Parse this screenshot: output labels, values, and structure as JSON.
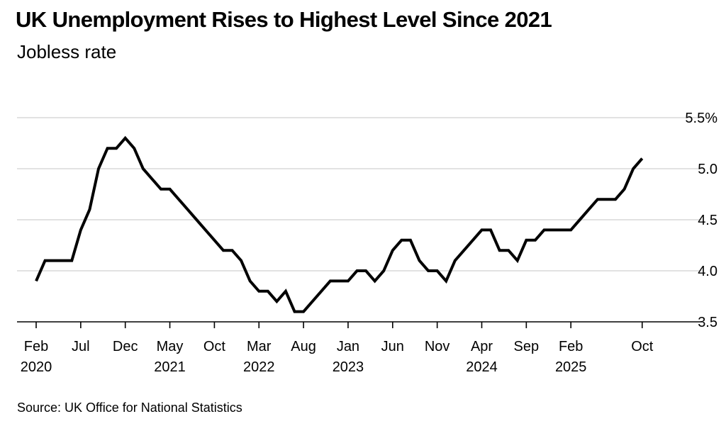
{
  "title": "UK Unemployment Rises to Highest Level Since 2021",
  "subtitle": "Jobless rate",
  "source": "Source: UK Office for National Statistics",
  "colors": {
    "line": "#000000",
    "grid": "#d9d9d9",
    "axis": "#000000"
  },
  "chart_data": {
    "type": "line",
    "title": "UK Unemployment Rises to Highest Level Since 2021",
    "subtitle": "Jobless rate",
    "xlabel": "",
    "ylabel": "",
    "ylim": [
      3.35,
      5.5
    ],
    "grid": true,
    "y_axis_position": "right",
    "y_ticks": [
      {
        "value": 5.5,
        "label": "5.5%"
      },
      {
        "value": 5.0,
        "label": "5.0"
      },
      {
        "value": 4.5,
        "label": "4.5"
      },
      {
        "value": 4.0,
        "label": "4.0"
      },
      {
        "value": 3.5,
        "label": "3.5"
      }
    ],
    "x_ticks": [
      {
        "i": 0,
        "label": "Feb",
        "year": "2020"
      },
      {
        "i": 5,
        "label": "Jul",
        "year": ""
      },
      {
        "i": 10,
        "label": "Dec",
        "year": ""
      },
      {
        "i": 15,
        "label": "May",
        "year": "2021"
      },
      {
        "i": 20,
        "label": "Oct",
        "year": ""
      },
      {
        "i": 25,
        "label": "Mar",
        "year": "2022"
      },
      {
        "i": 30,
        "label": "Aug",
        "year": ""
      },
      {
        "i": 35,
        "label": "Jan",
        "year": "2023"
      },
      {
        "i": 40,
        "label": "Jun",
        "year": ""
      },
      {
        "i": 45,
        "label": "Nov",
        "year": ""
      },
      {
        "i": 50,
        "label": "Apr",
        "year": "2024"
      },
      {
        "i": 55,
        "label": "Sep",
        "year": ""
      },
      {
        "i": 60,
        "label": "Feb",
        "year": "2025"
      },
      {
        "i": 68,
        "label": "Oct",
        "year": ""
      }
    ],
    "x": [
      "2020-02",
      "2020-03",
      "2020-04",
      "2020-05",
      "2020-06",
      "2020-07",
      "2020-08",
      "2020-09",
      "2020-10",
      "2020-11",
      "2020-12",
      "2021-01",
      "2021-02",
      "2021-03",
      "2021-04",
      "2021-05",
      "2021-06",
      "2021-07",
      "2021-08",
      "2021-09",
      "2021-10",
      "2021-11",
      "2021-12",
      "2022-01",
      "2022-02",
      "2022-03",
      "2022-04",
      "2022-05",
      "2022-06",
      "2022-07",
      "2022-08",
      "2022-09",
      "2022-10",
      "2022-11",
      "2022-12",
      "2023-01",
      "2023-02",
      "2023-03",
      "2023-04",
      "2023-05",
      "2023-06",
      "2023-07",
      "2023-08",
      "2023-09",
      "2023-10",
      "2023-11",
      "2023-12",
      "2024-01",
      "2024-02",
      "2024-03",
      "2024-04",
      "2024-05",
      "2024-06",
      "2024-07",
      "2024-08",
      "2024-09",
      "2024-10",
      "2024-11",
      "2024-12",
      "2025-01",
      "2025-02",
      "2025-03",
      "2025-04",
      "2025-05",
      "2025-06",
      "2025-07",
      "2025-08",
      "2025-09",
      "2025-10"
    ],
    "series": [
      {
        "values": [
          3.9,
          4.1,
          4.1,
          4.1,
          4.1,
          4.4,
          4.6,
          5.0,
          5.2,
          5.2,
          5.3,
          5.2,
          5.0,
          4.9,
          4.8,
          4.8,
          4.7,
          4.6,
          4.5,
          4.4,
          4.3,
          4.2,
          4.2,
          4.1,
          3.9,
          3.8,
          3.8,
          3.7,
          3.8,
          3.6,
          3.6,
          3.7,
          3.8,
          3.9,
          3.9,
          3.9,
          4.0,
          4.0,
          3.9,
          4.0,
          4.2,
          4.3,
          4.3,
          4.1,
          4.0,
          4.0,
          3.9,
          4.1,
          4.2,
          4.3,
          4.4,
          4.4,
          4.2,
          4.2,
          4.1,
          4.3,
          4.3,
          4.4,
          4.4,
          4.4,
          4.4,
          4.5,
          4.6,
          4.7,
          4.7,
          4.7,
          4.8,
          5.0,
          5.1
        ]
      }
    ]
  }
}
